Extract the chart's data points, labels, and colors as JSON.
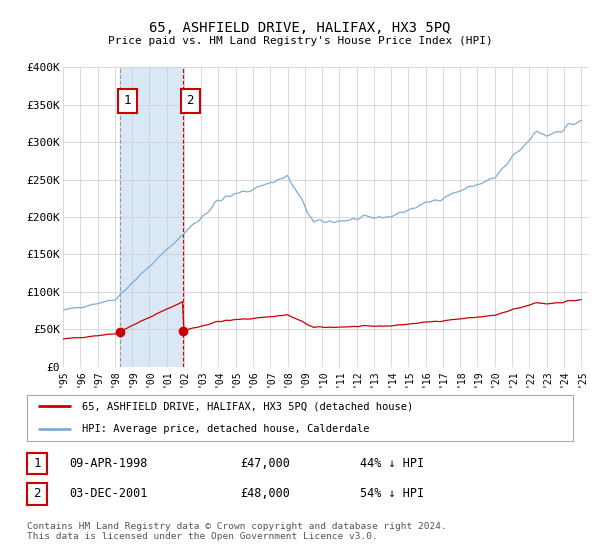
{
  "title": "65, ASHFIELD DRIVE, HALIFAX, HX3 5PQ",
  "subtitle": "Price paid vs. HM Land Registry's House Price Index (HPI)",
  "ylim": [
    0,
    400000
  ],
  "yticks": [
    0,
    50000,
    100000,
    150000,
    200000,
    250000,
    300000,
    350000,
    400000
  ],
  "ytick_labels": [
    "£0",
    "£50K",
    "£100K",
    "£150K",
    "£200K",
    "£250K",
    "£300K",
    "£350K",
    "£400K"
  ],
  "xlim_start": 1995.0,
  "xlim_end": 2025.4,
  "transactions": [
    {
      "date": 1998.274,
      "price": 47000,
      "label": "1"
    },
    {
      "date": 2001.921,
      "price": 48000,
      "label": "2"
    }
  ],
  "hpi_color": "#7eadd4",
  "price_color": "#cc0000",
  "shade_color": "#dae8f5",
  "vline1_color": "#999999",
  "vline2_color": "#dd0000",
  "legend_line1": "65, ASHFIELD DRIVE, HALIFAX, HX3 5PQ (detached house)",
  "legend_line2": "HPI: Average price, detached house, Calderdale",
  "table_rows": [
    {
      "num": "1",
      "date": "09-APR-1998",
      "price": "£47,000",
      "pct": "44% ↓ HPI"
    },
    {
      "num": "2",
      "date": "03-DEC-2001",
      "price": "£48,000",
      "pct": "54% ↓ HPI"
    }
  ],
  "footnote": "Contains HM Land Registry data © Crown copyright and database right 2024.\nThis data is licensed under the Open Government Licence v3.0.",
  "background_color": "#ffffff",
  "grid_color": "#cccccc"
}
